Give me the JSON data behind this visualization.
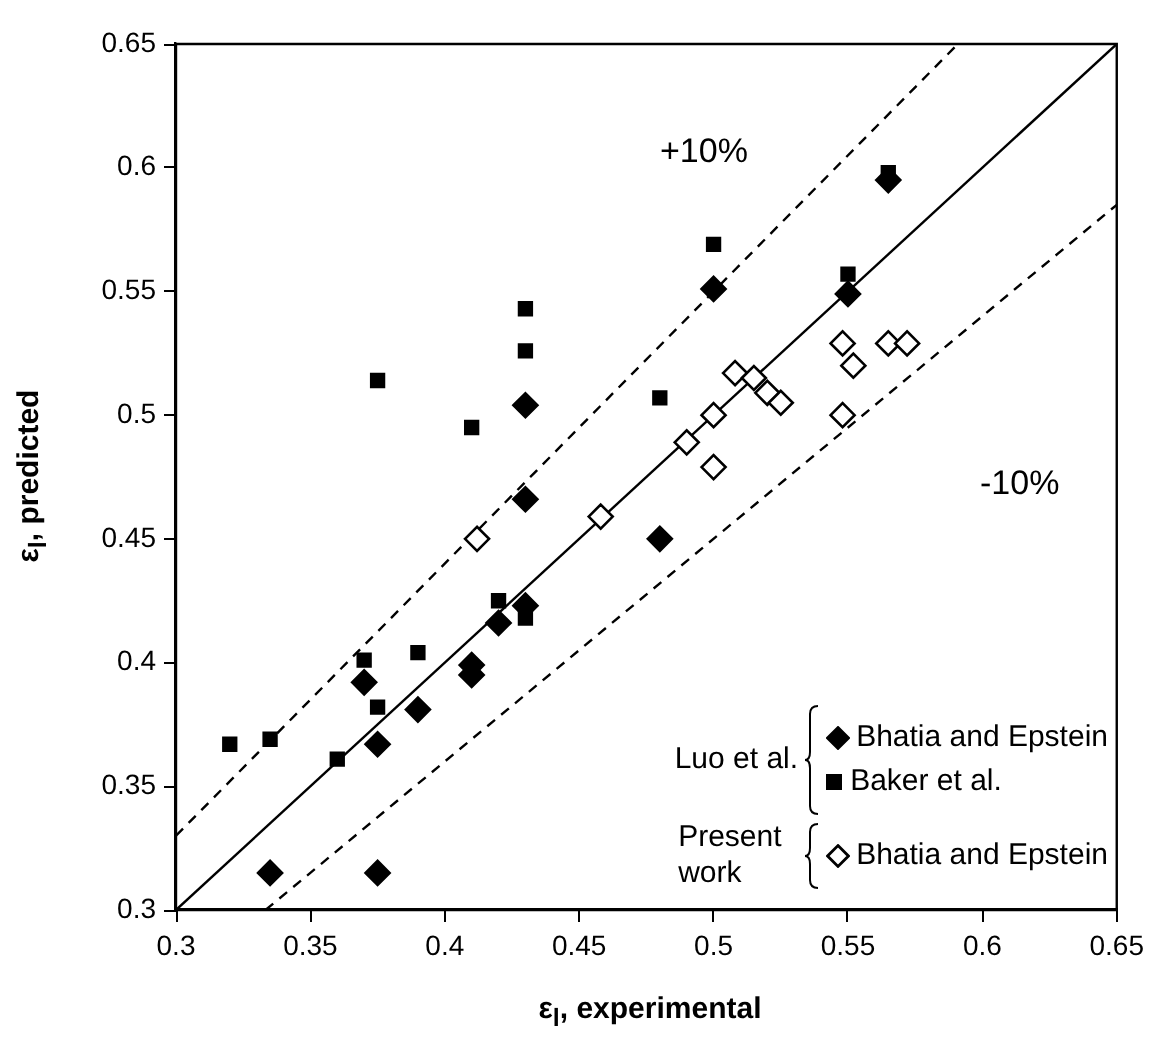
{
  "chart_data": {
    "type": "scatter",
    "xlabel": "ε$_{l}$, experimental",
    "ylabel": "ε$_{l}$, predicted",
    "xlim": [
      0.3,
      0.65
    ],
    "xticks": [
      0.3,
      0.35,
      0.4,
      0.45,
      0.5,
      0.55,
      0.6,
      0.65
    ],
    "ylim": [
      0.3,
      0.65
    ],
    "yticks": [
      0.3,
      0.35,
      0.4,
      0.45,
      0.5,
      0.55,
      0.6,
      0.65
    ],
    "grid": false,
    "legend": "bottom right",
    "series": [
      {
        "name": "Bhatia and Epstein",
        "type": "scatter",
        "marker": "diamond",
        "color": "#000000",
        "x": [
          0.335,
          0.375,
          0.37,
          0.375,
          0.39,
          0.41,
          0.41,
          0.42,
          0.43,
          0.43,
          0.43,
          0.48,
          0.5,
          0.55,
          0.565
        ],
        "values": [
          0.315,
          0.315,
          0.392,
          0.367,
          0.381,
          0.399,
          0.395,
          0.416,
          0.423,
          0.466,
          0.504,
          0.45,
          0.551,
          0.549,
          0.595
        ]
      },
      {
        "name": "Baker et al.",
        "type": "scatter",
        "marker": "square",
        "color": "#000000",
        "x": [
          0.32,
          0.335,
          0.36,
          0.37,
          0.375,
          0.39,
          0.42,
          0.43,
          0.375,
          0.41,
          0.43,
          0.43,
          0.48,
          0.5,
          0.55,
          0.565
        ],
        "values": [
          0.367,
          0.369,
          0.361,
          0.401,
          0.382,
          0.404,
          0.425,
          0.418,
          0.514,
          0.495,
          0.543,
          0.526,
          0.507,
          0.569,
          0.557,
          0.598
        ]
      },
      {
        "name": "Bhatia and Epstein",
        "type": "scatter",
        "marker": "diamond",
        "color": "#000000",
        "x": [
          0.412,
          0.458,
          0.49,
          0.5,
          0.5,
          0.508,
          0.515,
          0.52,
          0.525,
          0.548,
          0.552,
          0.548,
          0.565,
          0.572
        ],
        "values": [
          0.45,
          0.459,
          0.489,
          0.5,
          0.479,
          0.517,
          0.515,
          0.509,
          0.505,
          0.529,
          0.52,
          0.5,
          0.529,
          0.529
        ]
      },
      {
        "type": "line",
        "line_style": "solid",
        "color": "#000000",
        "x": [
          0.3,
          0.65
        ],
        "values": [
          0.3,
          0.65
        ]
      },
      {
        "type": "line",
        "line_style": "dashed",
        "color": "#000000",
        "x": [
          0.3,
          0.5909
        ],
        "values": [
          0.33,
          0.65
        ]
      },
      {
        "type": "line",
        "line_style": "dashed",
        "color": "#000000",
        "x": [
          0.3333,
          0.65
        ],
        "values": [
          0.3,
          0.585
        ]
      }
    ],
    "annotations": [
      "+10%",
      "-10%",
      "Luo et al.",
      "Present work"
    ]
  }
}
